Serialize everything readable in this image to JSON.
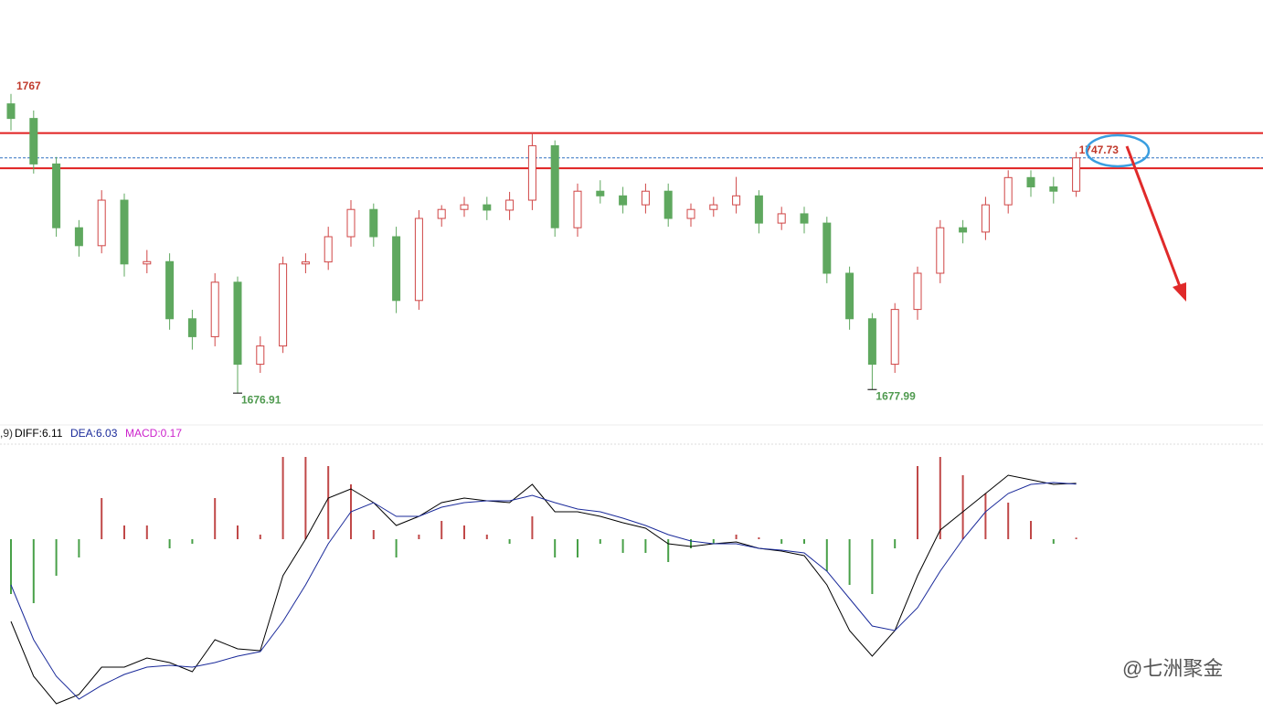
{
  "chart_data": [
    {
      "type": "candlestick",
      "open": [
        1764.0,
        1759.6,
        1745.9,
        1726.7,
        1721.3,
        1735.0,
        1715.8,
        1716.5,
        1699.3,
        1693.9,
        1710.3,
        1685.6,
        1691.1,
        1715.8,
        1716.4,
        1724.0,
        1732.2,
        1724.0,
        1704.8,
        1729.5,
        1732.2,
        1733.6,
        1732.0,
        1735.0,
        1751.4,
        1726.7,
        1737.7,
        1736.3,
        1733.6,
        1737.7,
        1729.5,
        1732.2,
        1733.6,
        1736.3,
        1728.1,
        1730.9,
        1728.1,
        1713.0,
        1699.3,
        1685.6,
        1702.1,
        1713.0,
        1726.7,
        1725.4,
        1733.6,
        1741.8,
        1739.0,
        1737.7
      ],
      "high": [
        1767.0,
        1762.0,
        1748.0,
        1729.0,
        1738.0,
        1737.0,
        1720.0,
        1719.0,
        1702.0,
        1713.0,
        1712.0,
        1694.0,
        1718.0,
        1719.0,
        1727.0,
        1735.0,
        1734.0,
        1727.0,
        1732.0,
        1733.5,
        1736.0,
        1736.0,
        1737.5,
        1755.49,
        1753.0,
        1740.0,
        1741.0,
        1739.0,
        1740.0,
        1740.0,
        1734.0,
        1736.0,
        1742.0,
        1738.0,
        1733.0,
        1733.0,
        1730.0,
        1715.0,
        1701.0,
        1704.0,
        1715.0,
        1729.0,
        1729.0,
        1736.0,
        1744.0,
        1744.0,
        1742.0,
        1749.5
      ],
      "low": [
        1756.0,
        1743.0,
        1724.0,
        1718.0,
        1719.0,
        1712.0,
        1713.0,
        1696.0,
        1690.0,
        1691.0,
        1676.91,
        1683.0,
        1689.0,
        1713.0,
        1714.0,
        1721.0,
        1721.0,
        1701.0,
        1702.0,
        1727.0,
        1730.0,
        1729.0,
        1729.0,
        1732.0,
        1724.0,
        1724.0,
        1734.0,
        1731.0,
        1731.0,
        1727.0,
        1727.0,
        1730.0,
        1731.0,
        1725.0,
        1726.0,
        1725.0,
        1710.0,
        1696.0,
        1677.99,
        1683.0,
        1699.0,
        1710.0,
        1722.0,
        1723.0,
        1731.0,
        1736.0,
        1734.0,
        1736.0
      ],
      "close": [
        1759.6,
        1745.9,
        1726.7,
        1721.3,
        1735.0,
        1715.8,
        1716.5,
        1699.3,
        1693.9,
        1710.3,
        1685.6,
        1691.1,
        1715.8,
        1716.4,
        1724.0,
        1732.2,
        1724.0,
        1704.8,
        1729.5,
        1732.2,
        1733.6,
        1732.0,
        1735.0,
        1751.4,
        1726.7,
        1737.7,
        1736.3,
        1733.6,
        1737.7,
        1729.5,
        1732.2,
        1733.6,
        1736.3,
        1728.1,
        1730.9,
        1728.1,
        1713.0,
        1699.3,
        1685.6,
        1702.1,
        1713.0,
        1726.7,
        1725.4,
        1733.6,
        1741.8,
        1739.0,
        1737.7,
        1747.73
      ],
      "up_color": "#d04545",
      "down_color": "#5fa85f",
      "ylim": [
        1668.7,
        1770.5
      ],
      "hlines": [
        {
          "value": 1755.2,
          "color": "#e02020"
        },
        {
          "value": 1744.6,
          "color": "#e02020"
        }
      ],
      "last_line_color": "#3070c0"
    },
    {
      "type": "macd",
      "prefix": ",9)",
      "ylim": [
        -18.8,
        10.5
      ],
      "up_color": "#c04848",
      "down_color": "#48a048",
      "series": [
        {
          "name": "DIFF:6.11",
          "color": "#000000",
          "values": [
            -9,
            -15,
            -18,
            -17,
            -14,
            -14,
            -13,
            -13.5,
            -14.5,
            -11,
            -12,
            -12.2,
            -4,
            0,
            4.5,
            5.5,
            4,
            1.5,
            2.5,
            4,
            4.5,
            4.2,
            4,
            6,
            3,
            3,
            2.5,
            1.8,
            1.2,
            -0.5,
            -0.8,
            -0.5,
            -0.3,
            -1,
            -1.3,
            -1.8,
            -5,
            -10,
            -12.8,
            -10,
            -4,
            1,
            3,
            5,
            7,
            6.5,
            6,
            6.11
          ]
        },
        {
          "name": "DEA:6.03",
          "color": "#1a2a9a",
          "values": [
            -5,
            -11,
            -15,
            -17.5,
            -16,
            -14.8,
            -14,
            -13.8,
            -14,
            -13.5,
            -12.8,
            -12.3,
            -9,
            -5,
            -0.5,
            3,
            4,
            2.5,
            2.5,
            3.5,
            4,
            4.2,
            4.2,
            4.8,
            4,
            3.3,
            3,
            2.3,
            1.5,
            0.5,
            -0.2,
            -0.5,
            -0.5,
            -1,
            -1.2,
            -1.5,
            -3.5,
            -6.5,
            -9.5,
            -10,
            -7.5,
            -3.5,
            0,
            3,
            5,
            6,
            6.2,
            6.03
          ]
        },
        {
          "name": "MACD:0.17",
          "color": "#cc22cc",
          "values": [
            -6,
            -7,
            -4,
            -2,
            4.5,
            1.5,
            1.5,
            -1,
            -0.5,
            4.5,
            1.5,
            0.5,
            9,
            9,
            8,
            6,
            1,
            -2,
            0.5,
            2,
            1.5,
            0.5,
            -0.5,
            2.5,
            -2,
            -2,
            -0.5,
            -1.5,
            -1.5,
            -2.5,
            -1,
            -0.5,
            0.5,
            0.2,
            -0.5,
            -0.5,
            -3.5,
            -5,
            -6,
            -1,
            8,
            9,
            7,
            5,
            4,
            2,
            -0.5,
            0.17
          ]
        }
      ]
    },
    {
      "watermark": "@七洲聚金"
    }
  ]
}
